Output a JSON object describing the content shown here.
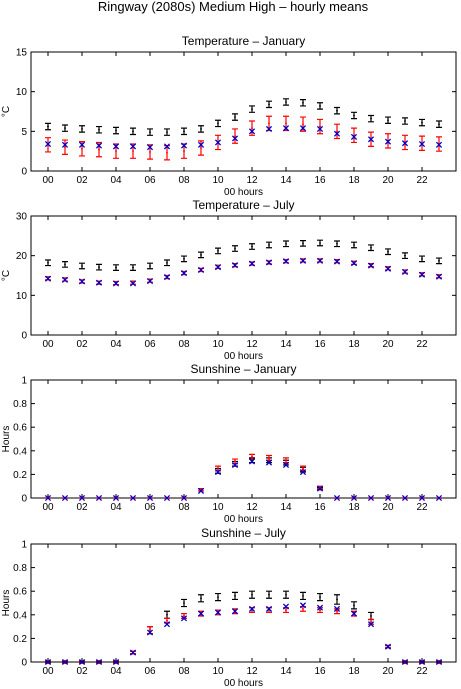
{
  "figure": {
    "title": "Ringway (2080s) Medium High – hourly means"
  },
  "legend_colors": {
    "baseline": "#000000",
    "scenario": "#ff0000",
    "cross": "#0000cc"
  },
  "chart_data": [
    {
      "type": "scatter",
      "title": "Temperature – January",
      "xlabel": "00 hours",
      "ylabel": "°C",
      "xlim": [
        -1,
        24
      ],
      "ylim": [
        0,
        15
      ],
      "xticks": [
        0,
        2,
        4,
        6,
        8,
        10,
        12,
        14,
        16,
        18,
        20,
        22
      ],
      "xtick_labels": [
        "00",
        "02",
        "04",
        "06",
        "08",
        "10",
        "12",
        "14",
        "16",
        "18",
        "20",
        "22"
      ],
      "yticks": [
        0,
        5,
        10,
        15
      ],
      "ytick_labels": [
        "0",
        "5",
        "10",
        "15"
      ],
      "x": [
        0,
        1,
        2,
        3,
        4,
        5,
        6,
        7,
        8,
        9,
        10,
        11,
        12,
        13,
        14,
        15,
        16,
        17,
        18,
        19,
        20,
        21,
        22,
        23
      ],
      "series": [
        {
          "color": "#000000",
          "marker": "errorbar",
          "values": [
            5.6,
            5.4,
            5.3,
            5.2,
            5.1,
            5.0,
            4.9,
            4.9,
            5.0,
            5.3,
            6.0,
            6.8,
            7.8,
            8.4,
            8.7,
            8.6,
            8.2,
            7.6,
            7.0,
            6.6,
            6.4,
            6.3,
            6.1,
            5.9
          ],
          "err": [
            0.4,
            0.4,
            0.4,
            0.4,
            0.4,
            0.4,
            0.4,
            0.4,
            0.4,
            0.4,
            0.4,
            0.4,
            0.4,
            0.4,
            0.4,
            0.4,
            0.4,
            0.4,
            0.4,
            0.4,
            0.4,
            0.4,
            0.4,
            0.4
          ]
        },
        {
          "color": "#ff0000",
          "marker": "errorbar",
          "values": [
            3.3,
            3.0,
            2.8,
            2.7,
            2.5,
            2.5,
            2.4,
            2.3,
            2.5,
            2.9,
            3.6,
            4.4,
            5.4,
            6.0,
            6.0,
            5.9,
            5.6,
            5.0,
            4.5,
            4.0,
            3.8,
            3.6,
            3.5,
            3.4
          ],
          "err": [
            0.9,
            0.9,
            0.9,
            0.9,
            0.9,
            0.9,
            0.9,
            0.9,
            0.9,
            0.9,
            0.9,
            0.9,
            0.9,
            0.9,
            0.9,
            0.9,
            0.9,
            0.9,
            0.9,
            0.9,
            0.9,
            0.9,
            0.9,
            0.9
          ]
        },
        {
          "color": "#0000cc",
          "marker": "x",
          "values": [
            3.4,
            3.3,
            3.3,
            3.2,
            3.1,
            3.1,
            3.0,
            3.1,
            3.2,
            3.3,
            3.6,
            4.1,
            5.0,
            5.3,
            5.4,
            5.4,
            5.3,
            4.7,
            4.3,
            4.0,
            3.7,
            3.5,
            3.4,
            3.3
          ]
        }
      ]
    },
    {
      "type": "scatter",
      "title": "Temperature – July",
      "xlabel": "00 hours",
      "ylabel": "°C",
      "xlim": [
        -1,
        24
      ],
      "ylim": [
        0,
        30
      ],
      "xticks": [
        0,
        2,
        4,
        6,
        8,
        10,
        12,
        14,
        16,
        18,
        20,
        22
      ],
      "xtick_labels": [
        "00",
        "02",
        "04",
        "06",
        "08",
        "10",
        "12",
        "14",
        "16",
        "18",
        "20",
        "22"
      ],
      "yticks": [
        0,
        10,
        20,
        30
      ],
      "ytick_labels": [
        "0",
        "10",
        "20",
        "30"
      ],
      "x": [
        0,
        1,
        2,
        3,
        4,
        5,
        6,
        7,
        8,
        9,
        10,
        11,
        12,
        13,
        14,
        15,
        16,
        17,
        18,
        19,
        20,
        21,
        22,
        23
      ],
      "series": [
        {
          "color": "#000000",
          "marker": "errorbar",
          "values": [
            18.2,
            17.8,
            17.4,
            17.1,
            17.0,
            17.0,
            17.4,
            18.2,
            19.2,
            20.2,
            21.2,
            21.8,
            22.3,
            22.7,
            23.0,
            23.1,
            23.2,
            23.0,
            22.7,
            22.0,
            21.0,
            20.0,
            19.2,
            18.7
          ],
          "err": [
            0.7,
            0.7,
            0.7,
            0.7,
            0.7,
            0.7,
            0.7,
            0.7,
            0.7,
            0.7,
            0.7,
            0.7,
            0.7,
            0.7,
            0.7,
            0.7,
            0.7,
            0.7,
            0.7,
            0.7,
            0.7,
            0.7,
            0.7,
            0.7
          ]
        },
        {
          "color": "#ff0000",
          "marker": "errorbar",
          "values": [
            14.3,
            14.0,
            13.5,
            13.2,
            13.1,
            13.2,
            13.7,
            14.6,
            15.6,
            16.4,
            17.2,
            17.6,
            18.0,
            18.3,
            18.6,
            18.8,
            18.8,
            18.6,
            18.2,
            17.6,
            16.8,
            16.0,
            15.3,
            14.8
          ],
          "err": [
            0.4,
            0.4,
            0.4,
            0.4,
            0.4,
            0.4,
            0.4,
            0.4,
            0.4,
            0.4,
            0.4,
            0.4,
            0.4,
            0.4,
            0.4,
            0.4,
            0.4,
            0.4,
            0.4,
            0.4,
            0.4,
            0.4,
            0.4,
            0.4
          ]
        },
        {
          "color": "#0000cc",
          "marker": "x",
          "values": [
            14.2,
            13.9,
            13.5,
            13.2,
            13.0,
            13.0,
            13.6,
            14.6,
            15.6,
            16.4,
            17.1,
            17.6,
            18.0,
            18.3,
            18.6,
            18.7,
            18.7,
            18.5,
            18.1,
            17.5,
            16.7,
            15.9,
            15.2,
            14.7
          ]
        }
      ]
    },
    {
      "type": "scatter",
      "title": "Sunshine – January",
      "xlabel": "00 hours",
      "ylabel": "Hours",
      "xlim": [
        -1,
        24
      ],
      "ylim": [
        0,
        1
      ],
      "xticks": [
        0,
        2,
        4,
        6,
        8,
        10,
        12,
        14,
        16,
        18,
        20,
        22
      ],
      "xtick_labels": [
        "00",
        "02",
        "04",
        "06",
        "08",
        "10",
        "12",
        "14",
        "16",
        "18",
        "20",
        "22"
      ],
      "yticks": [
        0,
        0.2,
        0.4,
        0.6,
        0.8,
        1
      ],
      "ytick_labels": [
        "0",
        "0.2",
        "0.4",
        "0.6",
        "0.8",
        "1"
      ],
      "x": [
        0,
        1,
        2,
        3,
        4,
        5,
        6,
        7,
        8,
        9,
        10,
        11,
        12,
        13,
        14,
        15,
        16,
        17,
        18,
        19,
        20,
        21,
        22,
        23
      ],
      "series": [
        {
          "color": "#000000",
          "marker": "errorbar",
          "values": [
            0,
            0,
            0,
            0,
            0,
            0,
            0,
            0,
            0,
            0.07,
            0.23,
            0.29,
            0.32,
            0.32,
            0.3,
            0.24,
            0.08,
            0,
            0,
            0,
            0,
            0,
            0,
            0
          ],
          "err": [
            0,
            0,
            0,
            0,
            0,
            0,
            0,
            0,
            0,
            0.01,
            0.02,
            0.02,
            0.02,
            0.02,
            0.02,
            0.02,
            0.01,
            0,
            0,
            0,
            0,
            0,
            0,
            0
          ]
        },
        {
          "color": "#ff0000",
          "marker": "errorbar",
          "values": [
            0,
            0,
            0,
            0,
            0,
            0,
            0,
            0,
            0,
            0.07,
            0.25,
            0.31,
            0.35,
            0.34,
            0.32,
            0.25,
            0.09,
            0,
            0,
            0,
            0,
            0,
            0,
            0
          ],
          "err": [
            0,
            0,
            0,
            0,
            0,
            0,
            0,
            0,
            0,
            0.01,
            0.02,
            0.02,
            0.02,
            0.02,
            0.02,
            0.02,
            0.01,
            0,
            0,
            0,
            0,
            0,
            0,
            0
          ]
        },
        {
          "color": "#0000cc",
          "marker": "x",
          "values": [
            0,
            0,
            0,
            0,
            0,
            0,
            0,
            0,
            0,
            0.06,
            0.22,
            0.28,
            0.31,
            0.3,
            0.28,
            0.22,
            0.08,
            0,
            0,
            0,
            0,
            0,
            0,
            0
          ]
        }
      ]
    },
    {
      "type": "scatter",
      "title": "Sunshine – July",
      "xlabel": "00 hours",
      "ylabel": "Hours",
      "xlim": [
        -1,
        24
      ],
      "ylim": [
        0,
        1
      ],
      "xticks": [
        0,
        2,
        4,
        6,
        8,
        10,
        12,
        14,
        16,
        18,
        20,
        22
      ],
      "xtick_labels": [
        "00",
        "02",
        "04",
        "06",
        "08",
        "10",
        "12",
        "14",
        "16",
        "18",
        "20",
        "22"
      ],
      "yticks": [
        0,
        0.2,
        0.4,
        0.6,
        0.8,
        1
      ],
      "ytick_labels": [
        "0",
        "0.2",
        "0.4",
        "0.6",
        "0.8",
        "1"
      ],
      "x": [
        0,
        1,
        2,
        3,
        4,
        5,
        6,
        7,
        8,
        9,
        10,
        11,
        12,
        13,
        14,
        15,
        16,
        17,
        18,
        19,
        20,
        21,
        22,
        23
      ],
      "series": [
        {
          "color": "#000000",
          "marker": "errorbar",
          "values": [
            0,
            0,
            0,
            0,
            0,
            0.08,
            0.27,
            0.4,
            0.5,
            0.54,
            0.55,
            0.56,
            0.57,
            0.57,
            0.57,
            0.56,
            0.55,
            0.53,
            0.48,
            0.39,
            0.13,
            0,
            0,
            0
          ],
          "err": [
            0.01,
            0.01,
            0.01,
            0.01,
            0.01,
            0.01,
            0.03,
            0.03,
            0.03,
            0.03,
            0.03,
            0.03,
            0.03,
            0.03,
            0.03,
            0.03,
            0.03,
            0.04,
            0.03,
            0.03,
            0.01,
            0.01,
            0.01,
            0.01
          ]
        },
        {
          "color": "#ff0000",
          "marker": "errorbar",
          "values": [
            0,
            0,
            0,
            0,
            0,
            0.08,
            0.27,
            0.35,
            0.39,
            0.41,
            0.42,
            0.43,
            0.44,
            0.44,
            0.44,
            0.45,
            0.44,
            0.43,
            0.41,
            0.34,
            0.13,
            0,
            0,
            0
          ],
          "err": [
            0.01,
            0.01,
            0.01,
            0.01,
            0.01,
            0.01,
            0.03,
            0.02,
            0.02,
            0.02,
            0.02,
            0.02,
            0.02,
            0.02,
            0.02,
            0.02,
            0.02,
            0.02,
            0.02,
            0.02,
            0.01,
            0.01,
            0.01,
            0.01
          ]
        },
        {
          "color": "#0000cc",
          "marker": "x",
          "values": [
            0,
            0,
            0,
            0,
            0,
            0.08,
            0.25,
            0.32,
            0.37,
            0.41,
            0.42,
            0.43,
            0.45,
            0.45,
            0.47,
            0.48,
            0.46,
            0.45,
            0.41,
            0.32,
            0.13,
            0,
            0,
            0
          ]
        }
      ]
    }
  ]
}
